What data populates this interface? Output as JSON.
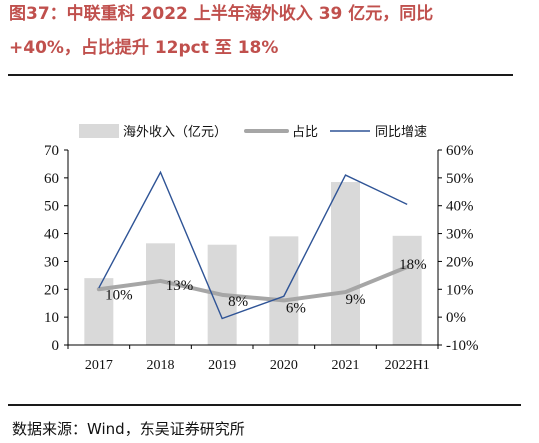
{
  "header": {
    "title_line1": "图37：中联重科 2022 上半年海外收入 39 亿元，同比",
    "title_line2": "+40%，占比提升 12pct 至 18%"
  },
  "footer": {
    "source": "数据来源：Wind，东吴证券研究所"
  },
  "colors": {
    "title": "#c0504d",
    "bar": "#d9d9d9",
    "share_line": "#a6a6a6",
    "yoy_line": "#2f5496"
  },
  "chart_data": {
    "type": "bar",
    "categories": [
      "2017",
      "2018",
      "2019",
      "2020",
      "2021",
      "2022H1"
    ],
    "series": [
      {
        "name": "海外收入（亿元）",
        "type": "bar",
        "axis": "left",
        "values": [
          24,
          36.5,
          36,
          39,
          58.5,
          39.2
        ]
      },
      {
        "name": "占比",
        "type": "line",
        "axis": "right",
        "values": [
          10,
          13,
          8,
          6,
          9,
          18
        ],
        "labels": [
          "10%",
          "13%",
          "8%",
          "6%",
          "9%",
          "18%"
        ]
      },
      {
        "name": "同比增速",
        "type": "line",
        "axis": "right",
        "values": [
          10.5,
          52,
          -0.5,
          7.5,
          51,
          40.5
        ]
      }
    ],
    "ylim_left": [
      0,
      70
    ],
    "yticks_left": [
      0,
      10,
      20,
      30,
      40,
      50,
      60,
      70
    ],
    "ylim_right": [
      -10,
      60
    ],
    "yticks_right_labels": [
      "-10%",
      "0%",
      "10%",
      "20%",
      "30%",
      "40%",
      "50%",
      "60%"
    ],
    "legend_position": "top",
    "grid": false
  }
}
